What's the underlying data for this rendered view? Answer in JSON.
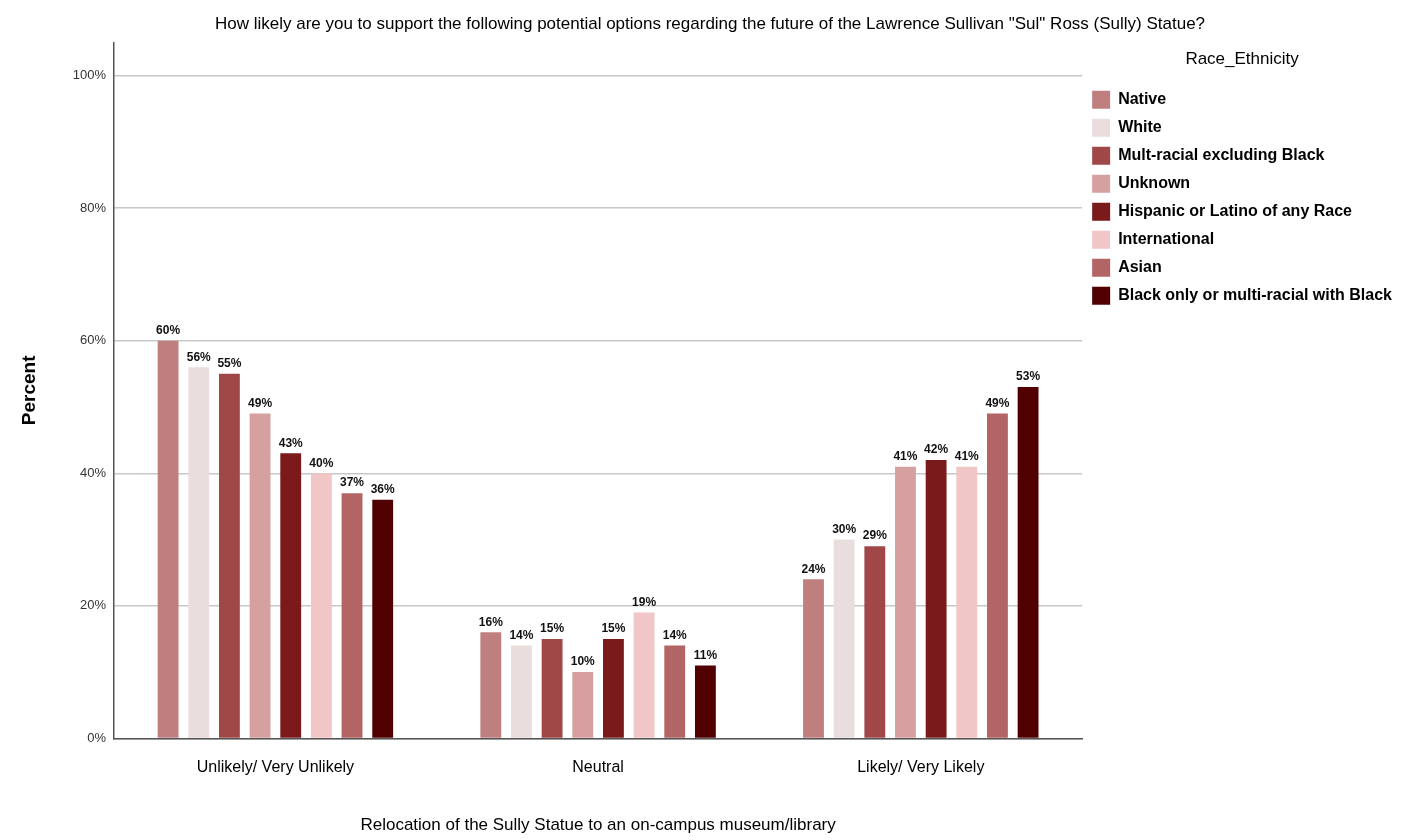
{
  "chart_data": {
    "type": "bar",
    "title": "How likely are you to support the following potential options regarding the future of the Lawrence Sullivan \"Sul\" Ross (Sully) Statue?",
    "xlabel": "Relocation of the Sully Statue to an on-campus museum/library",
    "ylabel": "Percent",
    "legend_title": "Race_Ethnicity",
    "categories": [
      "Unlikely/ Very Unlikely",
      "Neutral",
      "Likely/ Very Likely"
    ],
    "series": [
      {
        "name": "Native",
        "color": "#c07f7f",
        "values": [
          60,
          16,
          24
        ],
        "value_labels": [
          "60%",
          "16%",
          "24%"
        ]
      },
      {
        "name": "White",
        "color": "#e9dddd",
        "values": [
          56,
          14,
          30
        ],
        "value_labels": [
          "56%",
          "14%",
          "30%"
        ]
      },
      {
        "name": "Mult-racial excluding Black",
        "color": "#a04848",
        "values": [
          55,
          15,
          29
        ],
        "value_labels": [
          "55%",
          "15%",
          "29%"
        ]
      },
      {
        "name": "Unknown",
        "color": "#d6a0a0",
        "values": [
          49,
          10,
          41
        ],
        "value_labels": [
          "49%",
          "10%",
          "41%"
        ]
      },
      {
        "name": "Hispanic or Latino of any Race",
        "color": "#7a1a1a",
        "values": [
          43,
          15,
          42
        ],
        "value_labels": [
          "43%",
          "15%",
          "42%"
        ]
      },
      {
        "name": "International",
        "color": "#f0c6c6",
        "values": [
          40,
          19,
          41
        ],
        "value_labels": [
          "40%",
          "19%",
          "41%"
        ]
      },
      {
        "name": "Asian",
        "color": "#b36464",
        "values": [
          37,
          14,
          49
        ],
        "value_labels": [
          "37%",
          "14%",
          "49%"
        ]
      },
      {
        "name": "Black only or multi-racial with Black",
        "color": "#500000",
        "values": [
          36,
          11,
          53
        ],
        "value_labels": [
          "36%",
          "11%",
          "53%"
        ]
      }
    ],
    "ylim": [
      0,
      105
    ],
    "yticks": [
      {
        "value": 0,
        "label": "0%"
      },
      {
        "value": 20,
        "label": "20%"
      },
      {
        "value": 40,
        "label": "40%"
      },
      {
        "value": 60,
        "label": "60%"
      },
      {
        "value": 80,
        "label": "80%"
      },
      {
        "value": 100,
        "label": "100%"
      }
    ],
    "grid": "y",
    "legend": "top right"
  }
}
